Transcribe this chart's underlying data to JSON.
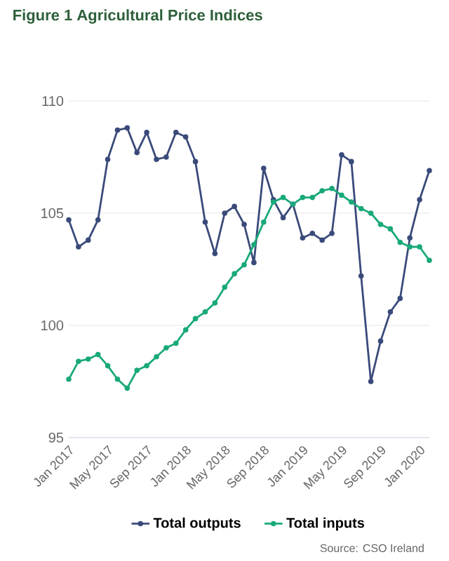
{
  "chart_data": {
    "type": "line",
    "title": "Figure 1 Agricultural Price Indices",
    "x": [
      "2017-01",
      "2017-02",
      "2017-03",
      "2017-04",
      "2017-05",
      "2017-06",
      "2017-07",
      "2017-08",
      "2017-09",
      "2017-10",
      "2017-11",
      "2017-12",
      "2018-01",
      "2018-02",
      "2018-03",
      "2018-04",
      "2018-05",
      "2018-06",
      "2018-07",
      "2018-08",
      "2018-09",
      "2018-10",
      "2018-11",
      "2018-12",
      "2019-01",
      "2019-02",
      "2019-03",
      "2019-04",
      "2019-05",
      "2019-06",
      "2019-07",
      "2019-08",
      "2019-09",
      "2019-10",
      "2019-11",
      "2019-12",
      "2020-01",
      "2020-02"
    ],
    "series": [
      {
        "name": "Total outputs",
        "color": "#3a4a7a",
        "values": [
          104.7,
          103.5,
          103.8,
          104.7,
          107.4,
          108.7,
          108.8,
          107.7,
          108.6,
          107.4,
          107.5,
          108.6,
          108.4,
          107.3,
          104.6,
          103.2,
          105.0,
          105.3,
          104.5,
          102.8,
          107.0,
          105.6,
          104.8,
          105.4,
          103.9,
          104.1,
          103.8,
          104.1,
          107.6,
          107.3,
          102.2,
          97.5,
          99.3,
          100.6,
          101.2,
          103.9,
          105.6,
          106.9
        ]
      },
      {
        "name": "Total inputs",
        "color": "#19a979",
        "values": [
          97.6,
          98.4,
          98.5,
          98.7,
          98.2,
          97.6,
          97.2,
          98.0,
          98.2,
          98.6,
          99.0,
          99.2,
          99.8,
          100.3,
          100.6,
          101.0,
          101.7,
          102.3,
          102.7,
          103.6,
          104.6,
          105.5,
          105.7,
          105.4,
          105.7,
          105.7,
          106.0,
          106.1,
          105.8,
          105.5,
          105.2,
          105.0,
          104.5,
          104.3,
          103.7,
          103.5,
          103.5,
          102.9
        ]
      }
    ],
    "xlim": [
      "2017-01",
      "2020-02"
    ],
    "xticks": [
      {
        "value": "2017-01",
        "label": "Jan 2017"
      },
      {
        "value": "2017-05",
        "label": "May 2017"
      },
      {
        "value": "2017-09",
        "label": "Sep 2017"
      },
      {
        "value": "2018-01",
        "label": "Jan 2018"
      },
      {
        "value": "2018-05",
        "label": "May 2018"
      },
      {
        "value": "2018-09",
        "label": "Sep 2018"
      },
      {
        "value": "2019-01",
        "label": "Jan 2019"
      },
      {
        "value": "2019-05",
        "label": "May 2019"
      },
      {
        "value": "2019-09",
        "label": "Sep 2019"
      },
      {
        "value": "2020-01",
        "label": "Jan 2020"
      }
    ],
    "ylim": [
      95,
      110
    ],
    "yticks": [
      95,
      100,
      105,
      110
    ],
    "grid": "y",
    "legend": "bottom",
    "marker": "circle",
    "annotations": [
      "Source: CSO Ireland"
    ]
  }
}
